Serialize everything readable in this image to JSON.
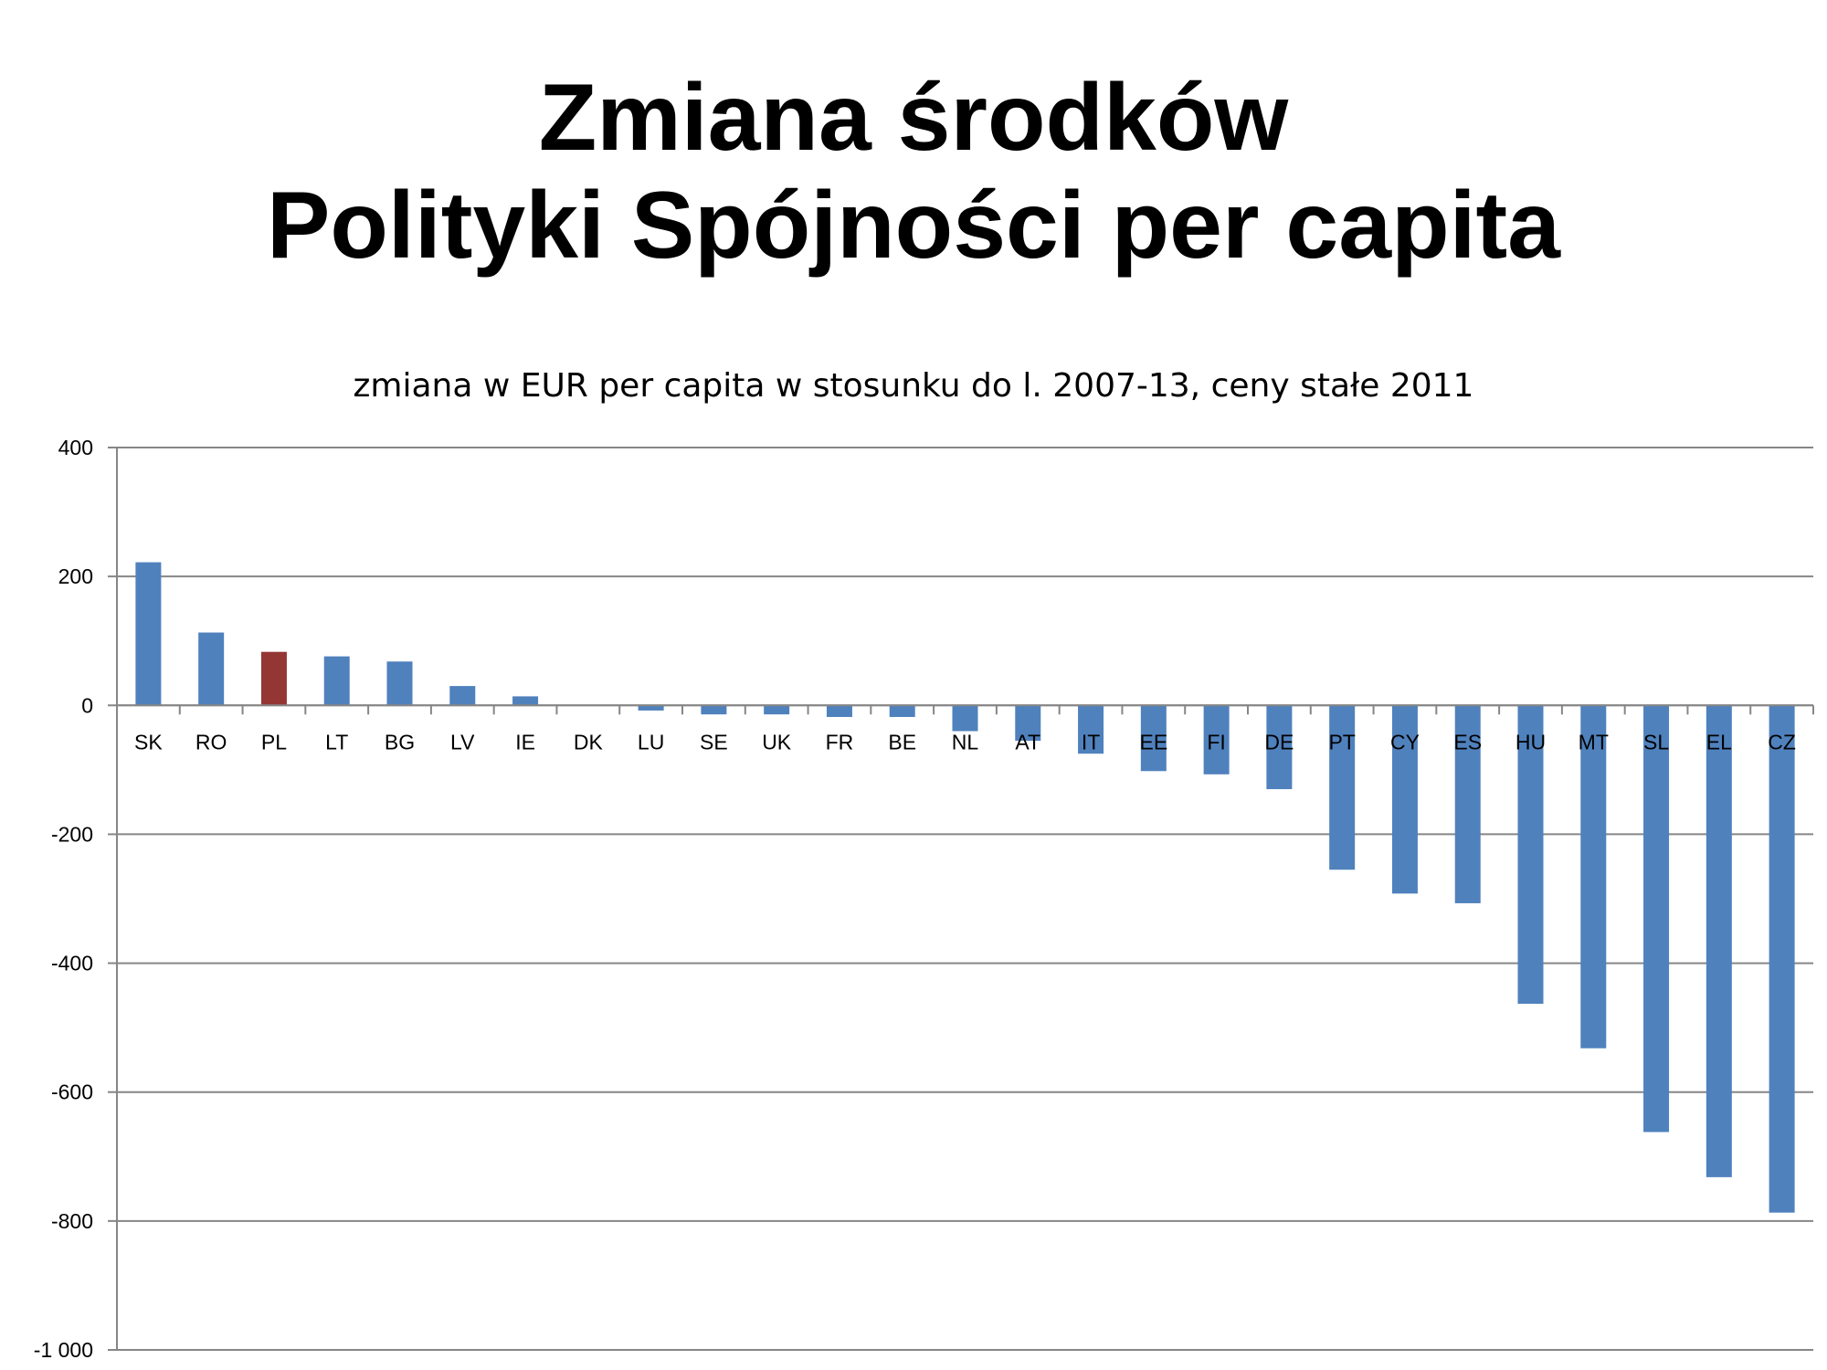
{
  "slide": {
    "title_line1": "Zmiana środków",
    "title_line2": "Polityki Spójności per capita"
  },
  "chart_data": {
    "type": "bar",
    "title": "zmiana w EUR per capita w stosunku do l. 2007-13, ceny stałe 2011",
    "xlabel": "",
    "ylabel": "",
    "ylim": [
      -1000,
      400
    ],
    "yticks": [
      400,
      200,
      0,
      -200,
      -400,
      -600,
      -800,
      -1000
    ],
    "ytick_labels": [
      "400",
      "200",
      "0",
      "-200",
      "-400",
      "-600",
      "-800",
      "-1 000"
    ],
    "grid": true,
    "categories": [
      "SK",
      "RO",
      "PL",
      "LT",
      "BG",
      "LV",
      "IE",
      "DK",
      "LU",
      "SE",
      "UK",
      "FR",
      "BE",
      "NL",
      "AT",
      "IT",
      "EE",
      "FI",
      "DE",
      "PT",
      "CY",
      "ES",
      "HU",
      "MT",
      "SL",
      "EL",
      "CZ"
    ],
    "values": [
      222,
      113,
      83,
      76,
      68,
      30,
      14,
      0,
      -8,
      -14,
      -14,
      -18,
      -18,
      -40,
      -55,
      -75,
      -102,
      -107,
      -130,
      -255,
      -292,
      -307,
      -463,
      -532,
      -662,
      -732,
      -787
    ],
    "colors": {
      "default": "#4F81BD",
      "highlight": "#943634",
      "grid": "#868686"
    },
    "highlight_category": "PL"
  }
}
